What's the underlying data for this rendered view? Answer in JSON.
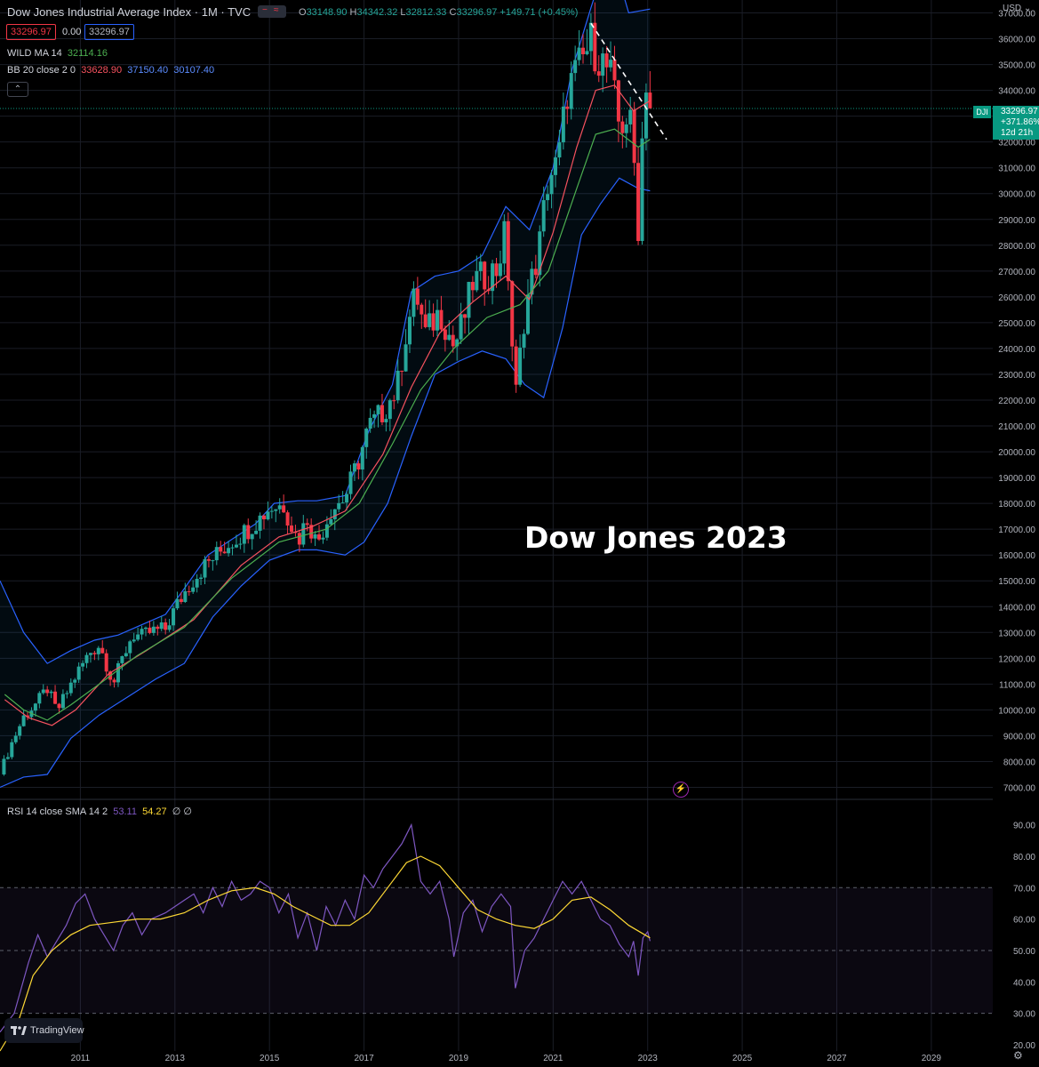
{
  "header": {
    "title": "Dow Jones Industrial Average Index · 1M · TVC",
    "ohlc": {
      "o_label": "O",
      "o": "33148.90",
      "h_label": "H",
      "h": "34342.32",
      "l_label": "L",
      "l": "32812.33",
      "c_label": "C",
      "c": "33296.97",
      "change": "+149.71 (+0.45%)"
    },
    "bid": "33296.97",
    "spread": "0.00",
    "ask": "33296.97",
    "wild_ma": {
      "label": "WILD MA 14",
      "value": "32114.16"
    },
    "bb": {
      "label": "BB 20 close 2 0",
      "basis": "33628.90",
      "upper": "37150.40",
      "lower": "30107.40"
    }
  },
  "annotation": "Dow Jones 2023",
  "rsi_header": {
    "label": "RSI 14 close SMA 14 2",
    "rsi": "53.11",
    "sma": "54.27",
    "extra": "∅ ∅"
  },
  "price_scale": {
    "currency": "USD",
    "last_symbol": "DJI",
    "last_price": "33296.97",
    "last_change": "+371.86%",
    "countdown": "12d 21h"
  },
  "logo_text": "TradingView",
  "colors": {
    "up": "#26a69a",
    "down": "#f23645",
    "wild": "#4caf50",
    "basis": "#f7525f",
    "bands": "#2962ff",
    "rsi": "#7e57c2",
    "rsi_ma": "#fdd835"
  },
  "chart_data": [
    {
      "type": "candlestick",
      "title": "Dow Jones Industrial Average Index · 1M · TVC",
      "ylim": [
        6500,
        37500
      ],
      "yticks": [
        7000,
        8000,
        9000,
        10000,
        11000,
        12000,
        13000,
        14000,
        15000,
        16000,
        17000,
        18000,
        19000,
        20000,
        21000,
        22000,
        23000,
        24000,
        25000,
        26000,
        27000,
        28000,
        29000,
        30000,
        31000,
        32000,
        33000,
        34000,
        35000,
        36000,
        37000
      ],
      "ytick_labels": [
        "7000.00",
        "8000.00",
        "9000.00",
        "10000.00",
        "11000.00",
        "12000.00",
        "13000.00",
        "14000.00",
        "15000.00",
        "16000.00",
        "17000.00",
        "18000.00",
        "19000.00",
        "20000.00",
        "21000.00",
        "22000.00",
        "23000.00",
        "24000.00",
        "25000.00",
        "26000.00",
        "27000.00",
        "28000.00",
        "29000.00",
        "30000.00",
        "31000.00",
        "32000.00",
        "33000.00",
        "34000.00",
        "35000.00",
        "36000.00",
        "37000.00"
      ],
      "xlim": [
        2009.3,
        2030.3
      ],
      "xticks": [
        "2011",
        "2013",
        "2015",
        "2017",
        "2019",
        "2021",
        "2023",
        "2025",
        "2027",
        "2029"
      ],
      "close_path": [
        [
          2009.3,
          7500
        ],
        [
          2009.5,
          8500
        ],
        [
          2009.8,
          9700
        ],
        [
          2010.1,
          10300
        ],
        [
          2010.3,
          10800
        ],
        [
          2010.5,
          9900
        ],
        [
          2010.7,
          10600
        ],
        [
          2010.9,
          11300
        ],
        [
          2011.2,
          12200
        ],
        [
          2011.4,
          12500
        ],
        [
          2011.7,
          11000
        ],
        [
          2011.9,
          12000
        ],
        [
          2012.1,
          12900
        ],
        [
          2012.3,
          12800
        ],
        [
          2012.5,
          13000
        ],
        [
          2012.8,
          13100
        ],
        [
          2013.0,
          13900
        ],
        [
          2013.3,
          14800
        ],
        [
          2013.6,
          15500
        ],
        [
          2013.9,
          16000
        ],
        [
          2014.2,
          16500
        ],
        [
          2014.5,
          16900
        ],
        [
          2014.8,
          17400
        ],
        [
          2015.0,
          17800
        ],
        [
          2015.3,
          17900
        ],
        [
          2015.6,
          16500
        ],
        [
          2015.8,
          17400
        ],
        [
          2016.0,
          16400
        ],
        [
          2016.3,
          17700
        ],
        [
          2016.6,
          18200
        ],
        [
          2016.9,
          19700
        ],
        [
          2017.1,
          20900
        ],
        [
          2017.4,
          21500
        ],
        [
          2017.7,
          22400
        ],
        [
          2017.9,
          24700
        ],
        [
          2018.1,
          26100
        ],
        [
          2018.3,
          24500
        ],
        [
          2018.6,
          25400
        ],
        [
          2018.9,
          24000
        ],
        [
          2019.1,
          25000
        ],
        [
          2019.3,
          26500
        ],
        [
          2019.5,
          26700
        ],
        [
          2019.8,
          27000
        ],
        [
          2020.0,
          28500
        ],
        [
          2020.2,
          21900
        ],
        [
          2020.4,
          25400
        ],
        [
          2020.7,
          27800
        ],
        [
          2020.9,
          30600
        ],
        [
          2021.1,
          31000
        ],
        [
          2021.3,
          33900
        ],
        [
          2021.6,
          35000
        ],
        [
          2021.8,
          35800
        ],
        [
          2022.0,
          35100
        ],
        [
          2022.2,
          34600
        ],
        [
          2022.4,
          32500
        ],
        [
          2022.6,
          33000
        ],
        [
          2022.7,
          31500
        ],
        [
          2022.8,
          28700
        ],
        [
          2022.9,
          32700
        ],
        [
          2022.95,
          34600
        ],
        [
          2023.05,
          33300
        ]
      ],
      "wild_ma_path": [
        [
          2009.4,
          10600
        ],
        [
          2009.8,
          10000
        ],
        [
          2010.3,
          9600
        ],
        [
          2010.8,
          10200
        ],
        [
          2011.4,
          11000
        ],
        [
          2012.2,
          12100
        ],
        [
          2013.2,
          13200
        ],
        [
          2014.2,
          15100
        ],
        [
          2015.2,
          16500
        ],
        [
          2016.2,
          17000
        ],
        [
          2016.9,
          18000
        ],
        [
          2017.6,
          20300
        ],
        [
          2018.2,
          22400
        ],
        [
          2018.9,
          24000
        ],
        [
          2019.6,
          25200
        ],
        [
          2020.3,
          25700
        ],
        [
          2020.9,
          27000
        ],
        [
          2021.5,
          30200
        ],
        [
          2021.9,
          32300
        ],
        [
          2022.3,
          32500
        ],
        [
          2022.8,
          31800
        ],
        [
          2023.05,
          32100
        ]
      ],
      "basis_path": [
        [
          2009.4,
          10400
        ],
        [
          2009.9,
          9700
        ],
        [
          2010.4,
          9400
        ],
        [
          2010.9,
          10000
        ],
        [
          2011.6,
          11400
        ],
        [
          2012.4,
          12300
        ],
        [
          2013.4,
          13500
        ],
        [
          2014.4,
          15600
        ],
        [
          2015.2,
          16700
        ],
        [
          2015.9,
          17100
        ],
        [
          2016.6,
          17700
        ],
        [
          2017.4,
          19900
        ],
        [
          2018.0,
          22500
        ],
        [
          2018.6,
          24600
        ],
        [
          2019.3,
          25800
        ],
        [
          2020.0,
          26800
        ],
        [
          2020.5,
          25900
        ],
        [
          2021.0,
          28500
        ],
        [
          2021.5,
          31800
        ],
        [
          2021.9,
          34000
        ],
        [
          2022.3,
          34200
        ],
        [
          2022.7,
          33200
        ],
        [
          2023.05,
          33600
        ]
      ],
      "upper_band_path": [
        [
          2009.3,
          15000
        ],
        [
          2009.8,
          13000
        ],
        [
          2010.3,
          11800
        ],
        [
          2010.8,
          12300
        ],
        [
          2011.3,
          12700
        ],
        [
          2011.8,
          12900
        ],
        [
          2012.3,
          13300
        ],
        [
          2012.8,
          13700
        ],
        [
          2013.2,
          14700
        ],
        [
          2013.7,
          16000
        ],
        [
          2014.2,
          16600
        ],
        [
          2014.7,
          17200
        ],
        [
          2015.1,
          18000
        ],
        [
          2015.6,
          18100
        ],
        [
          2016.0,
          18100
        ],
        [
          2016.6,
          18300
        ],
        [
          2017.1,
          20800
        ],
        [
          2017.6,
          22600
        ],
        [
          2018.0,
          26200
        ],
        [
          2018.5,
          26800
        ],
        [
          2019.0,
          27000
        ],
        [
          2019.5,
          27600
        ],
        [
          2020.0,
          29500
        ],
        [
          2020.5,
          28600
        ],
        [
          2021.0,
          31000
        ],
        [
          2021.4,
          34800
        ],
        [
          2021.8,
          37200
        ],
        [
          2022.2,
          39500
        ],
        [
          2022.6,
          37000
        ],
        [
          2023.05,
          37150
        ]
      ],
      "lower_band_path": [
        [
          2009.3,
          7000
        ],
        [
          2009.8,
          7400
        ],
        [
          2010.3,
          7500
        ],
        [
          2010.8,
          8900
        ],
        [
          2011.4,
          9800
        ],
        [
          2012.0,
          10500
        ],
        [
          2012.6,
          11200
        ],
        [
          2013.2,
          11800
        ],
        [
          2013.8,
          13600
        ],
        [
          2014.4,
          14800
        ],
        [
          2015.0,
          15800
        ],
        [
          2015.6,
          16200
        ],
        [
          2016.0,
          16200
        ],
        [
          2016.6,
          16000
        ],
        [
          2017.0,
          16500
        ],
        [
          2017.5,
          18000
        ],
        [
          2018.0,
          20600
        ],
        [
          2018.5,
          23000
        ],
        [
          2019.0,
          23500
        ],
        [
          2019.5,
          23900
        ],
        [
          2020.0,
          23600
        ],
        [
          2020.4,
          22600
        ],
        [
          2020.8,
          22100
        ],
        [
          2021.2,
          24800
        ],
        [
          2021.6,
          28400
        ],
        [
          2022.0,
          29600
        ],
        [
          2022.4,
          30600
        ],
        [
          2022.8,
          30200
        ],
        [
          2023.05,
          30107
        ]
      ],
      "trendline": [
        [
          2021.8,
          36600
        ],
        [
          2023.4,
          32100
        ]
      ]
    },
    {
      "type": "line",
      "title": "RSI 14 close SMA 14 2",
      "ylim": [
        18,
        95
      ],
      "yticks": [
        20,
        30,
        40,
        50,
        60,
        70,
        80,
        90
      ],
      "ytick_labels": [
        "20.00",
        "30.00",
        "40.00",
        "50.00",
        "60.00",
        "70.00",
        "80.00",
        "90.00"
      ],
      "band": [
        30,
        70
      ],
      "midline": 50,
      "series": [
        {
          "name": "RSI",
          "values": [
            [
              2009.3,
              24
            ],
            [
              2009.6,
              30
            ],
            [
              2009.9,
              46
            ],
            [
              2010.1,
              55
            ],
            [
              2010.3,
              48
            ],
            [
              2010.5,
              53
            ],
            [
              2010.7,
              58
            ],
            [
              2010.9,
              65
            ],
            [
              2011.1,
              68
            ],
            [
              2011.3,
              60
            ],
            [
              2011.5,
              55
            ],
            [
              2011.7,
              50
            ],
            [
              2011.9,
              58
            ],
            [
              2012.1,
              62
            ],
            [
              2012.3,
              55
            ],
            [
              2012.5,
              60
            ],
            [
              2012.8,
              62
            ],
            [
              2013.0,
              64
            ],
            [
              2013.2,
              66
            ],
            [
              2013.4,
              68
            ],
            [
              2013.6,
              62
            ],
            [
              2013.8,
              70
            ],
            [
              2014.0,
              64
            ],
            [
              2014.2,
              72
            ],
            [
              2014.4,
              66
            ],
            [
              2014.6,
              68
            ],
            [
              2014.8,
              72
            ],
            [
              2015.0,
              70
            ],
            [
              2015.2,
              62
            ],
            [
              2015.4,
              68
            ],
            [
              2015.6,
              54
            ],
            [
              2015.8,
              62
            ],
            [
              2016.0,
              50
            ],
            [
              2016.2,
              64
            ],
            [
              2016.4,
              58
            ],
            [
              2016.6,
              66
            ],
            [
              2016.8,
              60
            ],
            [
              2017.0,
              74
            ],
            [
              2017.2,
              70
            ],
            [
              2017.4,
              76
            ],
            [
              2017.6,
              80
            ],
            [
              2017.8,
              84
            ],
            [
              2018.0,
              90
            ],
            [
              2018.2,
              72
            ],
            [
              2018.4,
              68
            ],
            [
              2018.6,
              72
            ],
            [
              2018.8,
              60
            ],
            [
              2018.9,
              48
            ],
            [
              2019.1,
              62
            ],
            [
              2019.3,
              66
            ],
            [
              2019.5,
              56
            ],
            [
              2019.7,
              64
            ],
            [
              2019.9,
              68
            ],
            [
              2020.1,
              64
            ],
            [
              2020.2,
              38
            ],
            [
              2020.4,
              50
            ],
            [
              2020.6,
              54
            ],
            [
              2020.8,
              60
            ],
            [
              2021.0,
              66
            ],
            [
              2021.2,
              72
            ],
            [
              2021.4,
              68
            ],
            [
              2021.6,
              72
            ],
            [
              2021.8,
              66
            ],
            [
              2022.0,
              60
            ],
            [
              2022.2,
              58
            ],
            [
              2022.4,
              52
            ],
            [
              2022.6,
              48
            ],
            [
              2022.7,
              53
            ],
            [
              2022.8,
              42
            ],
            [
              2022.9,
              54
            ],
            [
              2023.0,
              56
            ],
            [
              2023.05,
              53
            ]
          ]
        },
        {
          "name": "SMA",
          "values": [
            [
              2009.3,
              18
            ],
            [
              2009.7,
              28
            ],
            [
              2010.0,
              42
            ],
            [
              2010.4,
              50
            ],
            [
              2010.8,
              55
            ],
            [
              2011.2,
              58
            ],
            [
              2011.7,
              59
            ],
            [
              2012.2,
              60
            ],
            [
              2012.7,
              60
            ],
            [
              2013.2,
              62
            ],
            [
              2013.7,
              66
            ],
            [
              2014.2,
              69
            ],
            [
              2014.7,
              70
            ],
            [
              2015.1,
              68
            ],
            [
              2015.5,
              64
            ],
            [
              2015.9,
              61
            ],
            [
              2016.3,
              58
            ],
            [
              2016.7,
              58
            ],
            [
              2017.1,
              62
            ],
            [
              2017.5,
              70
            ],
            [
              2017.9,
              78
            ],
            [
              2018.2,
              80
            ],
            [
              2018.6,
              77
            ],
            [
              2019.0,
              70
            ],
            [
              2019.4,
              63
            ],
            [
              2019.8,
              60
            ],
            [
              2020.2,
              58
            ],
            [
              2020.6,
              57
            ],
            [
              2021.0,
              60
            ],
            [
              2021.4,
              66
            ],
            [
              2021.8,
              67
            ],
            [
              2022.2,
              63
            ],
            [
              2022.6,
              58
            ],
            [
              2023.05,
              54
            ]
          ]
        }
      ]
    }
  ]
}
